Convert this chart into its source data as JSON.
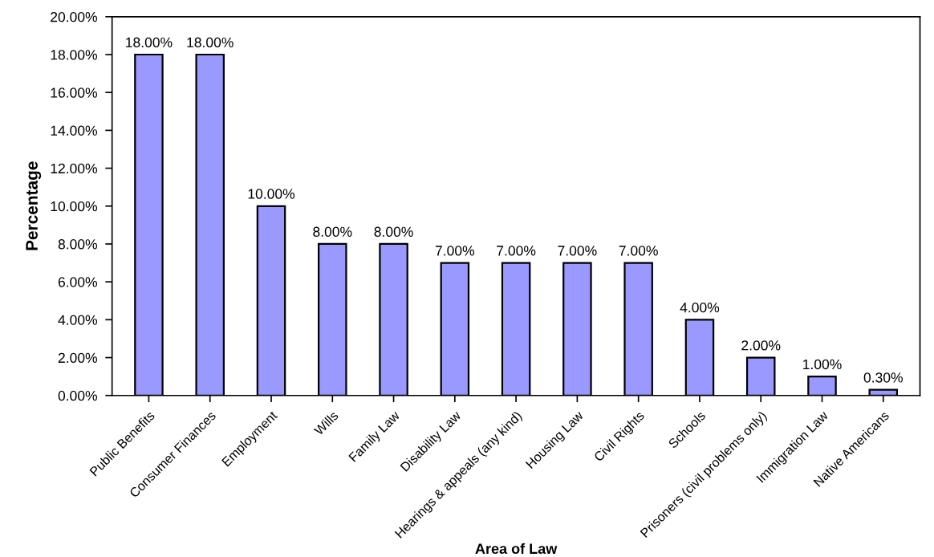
{
  "chart_data": {
    "type": "bar",
    "xlabel": "Area of Law",
    "ylabel": "Percentage",
    "categories": [
      "Public Benefits",
      "Consumer Finances",
      "Employment",
      "Wills",
      "Family Law",
      "Disability Law",
      "Hearings & appeals (any kind)",
      "Housing Law",
      "Civil Rights",
      "Schools",
      "Prisoners (civil problems only)",
      "Immigration Law",
      "Native Americans"
    ],
    "values": [
      18,
      18,
      10,
      8,
      8,
      7,
      7,
      7,
      7,
      4,
      2,
      1,
      0.3
    ],
    "value_labels": [
      "18.00%",
      "18.00%",
      "10.00%",
      "8.00%",
      "8.00%",
      "7.00%",
      "7.00%",
      "7.00%",
      "7.00%",
      "4.00%",
      "2.00%",
      "1.00%",
      "0.30%"
    ],
    "color": "#9999ff",
    "ylim": [
      0,
      20
    ],
    "yticks": [
      {
        "value": 0,
        "label": "0.00%"
      },
      {
        "value": 2,
        "label": "2.00%"
      },
      {
        "value": 4,
        "label": "4.00%"
      },
      {
        "value": 6,
        "label": "6.00%"
      },
      {
        "value": 8,
        "label": "8.00%"
      },
      {
        "value": 10,
        "label": "10.00%"
      },
      {
        "value": 12,
        "label": "12.00%"
      },
      {
        "value": 14,
        "label": "14.00%"
      },
      {
        "value": 16,
        "label": "16.00%"
      },
      {
        "value": 18,
        "label": "18.00%"
      },
      {
        "value": 20,
        "label": "20.00%"
      }
    ],
    "grid": false,
    "legend": false
  }
}
